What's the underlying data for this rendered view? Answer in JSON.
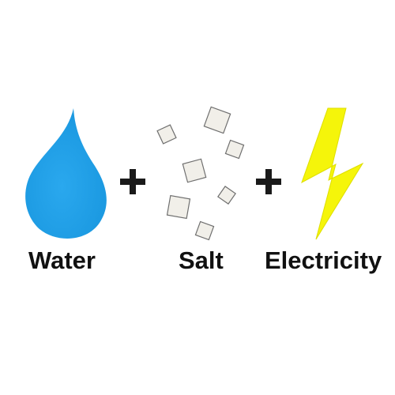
{
  "equation": {
    "terms": [
      {
        "label": "Water",
        "icon": "water-drop-icon",
        "color": "#1e9fe6"
      },
      {
        "label": "Salt",
        "icon": "salt-crystals-icon",
        "color": "#f1efe9"
      },
      {
        "label": "Electricity",
        "icon": "lightning-bolt-icon",
        "color": "#f5f50a"
      }
    ],
    "operator": "plus-icon"
  }
}
